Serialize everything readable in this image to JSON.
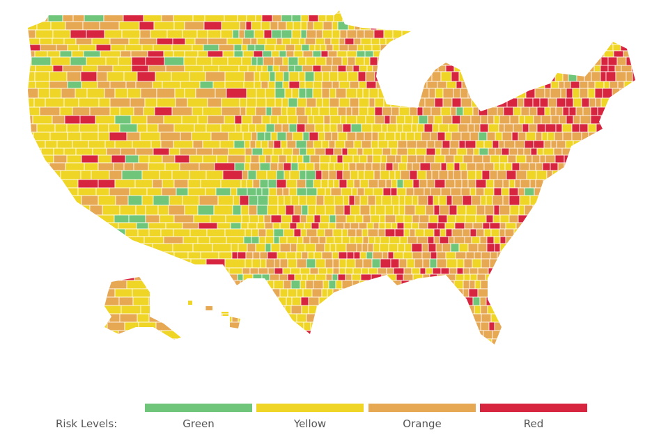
{
  "legend": {
    "title": "Risk Levels:",
    "items": [
      {
        "label": "Green",
        "color": "#6fc67a"
      },
      {
        "label": "Yellow",
        "color": "#efd626"
      },
      {
        "label": "Orange",
        "color": "#e6a853"
      },
      {
        "label": "Red",
        "color": "#d8253f"
      }
    ]
  }
}
